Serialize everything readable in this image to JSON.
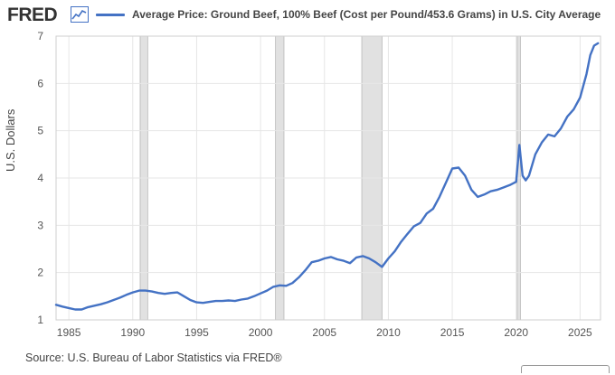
{
  "header": {
    "logo_text": "FRED",
    "logo_icon": "line-chart-icon",
    "legend_label": "Average Price: Ground Beef, 100% Beef (Cost per Pound/453.6 Grams) in U.S. City Average",
    "series_color": "#4472c4"
  },
  "footer": {
    "source": "Source: U.S. Bureau of Labor Statistics via FRED®"
  },
  "chart_data": {
    "type": "line",
    "title": "",
    "xlabel": "",
    "ylabel": "U.S. Dollars",
    "xlim": [
      1984,
      2026.6
    ],
    "ylim": [
      1,
      7
    ],
    "x_ticks": [
      1985,
      1990,
      1995,
      2000,
      2005,
      2010,
      2015,
      2020,
      2025
    ],
    "y_ticks": [
      1,
      2,
      3,
      4,
      5,
      6,
      7
    ],
    "grid": true,
    "legend_position": "top",
    "recessions": [
      [
        1990.58,
        1991.17
      ],
      [
        2001.17,
        2001.83
      ],
      [
        2007.92,
        2009.5
      ],
      [
        2020.08,
        2020.33
      ]
    ],
    "series": [
      {
        "name": "Average Price: Ground Beef, 100% Beef (Cost per Pound/453.6 Grams) in U.S. City Average",
        "color": "#4472c4",
        "x": [
          1984.0,
          1984.5,
          1985.0,
          1985.5,
          1986.0,
          1986.5,
          1987.0,
          1987.5,
          1988.0,
          1988.5,
          1989.0,
          1989.5,
          1990.0,
          1990.5,
          1991.0,
          1991.5,
          1992.0,
          1992.5,
          1993.0,
          1993.5,
          1994.0,
          1994.5,
          1995.0,
          1995.5,
          1996.0,
          1996.5,
          1997.0,
          1997.5,
          1998.0,
          1998.5,
          1999.0,
          1999.5,
          2000.0,
          2000.5,
          2001.0,
          2001.5,
          2002.0,
          2002.5,
          2003.0,
          2003.5,
          2004.0,
          2004.5,
          2005.0,
          2005.5,
          2006.0,
          2006.5,
          2007.0,
          2007.5,
          2008.0,
          2008.5,
          2009.0,
          2009.5,
          2010.0,
          2010.5,
          2011.0,
          2011.5,
          2012.0,
          2012.5,
          2013.0,
          2013.5,
          2014.0,
          2014.5,
          2015.0,
          2015.5,
          2016.0,
          2016.5,
          2017.0,
          2017.5,
          2018.0,
          2018.5,
          2019.0,
          2019.5,
          2020.0,
          2020.25,
          2020.5,
          2020.75,
          2021.0,
          2021.5,
          2022.0,
          2022.5,
          2023.0,
          2023.5,
          2024.0,
          2024.5,
          2025.0,
          2025.5,
          2025.8,
          2026.1,
          2026.4
        ],
        "values": [
          1.32,
          1.28,
          1.25,
          1.22,
          1.22,
          1.27,
          1.3,
          1.33,
          1.37,
          1.42,
          1.47,
          1.53,
          1.58,
          1.62,
          1.62,
          1.6,
          1.57,
          1.55,
          1.57,
          1.58,
          1.5,
          1.42,
          1.37,
          1.36,
          1.38,
          1.4,
          1.4,
          1.41,
          1.4,
          1.43,
          1.45,
          1.5,
          1.56,
          1.62,
          1.7,
          1.73,
          1.72,
          1.78,
          1.9,
          2.05,
          2.22,
          2.25,
          2.3,
          2.33,
          2.28,
          2.25,
          2.2,
          2.32,
          2.35,
          2.3,
          2.22,
          2.12,
          2.3,
          2.45,
          2.65,
          2.82,
          2.98,
          3.05,
          3.25,
          3.35,
          3.6,
          3.9,
          4.2,
          4.22,
          4.05,
          3.75,
          3.6,
          3.65,
          3.72,
          3.75,
          3.8,
          3.85,
          3.92,
          4.7,
          4.05,
          3.95,
          4.05,
          4.5,
          4.75,
          4.92,
          4.88,
          5.05,
          5.3,
          5.45,
          5.7,
          6.2,
          6.6,
          6.8,
          6.85
        ]
      }
    ]
  }
}
